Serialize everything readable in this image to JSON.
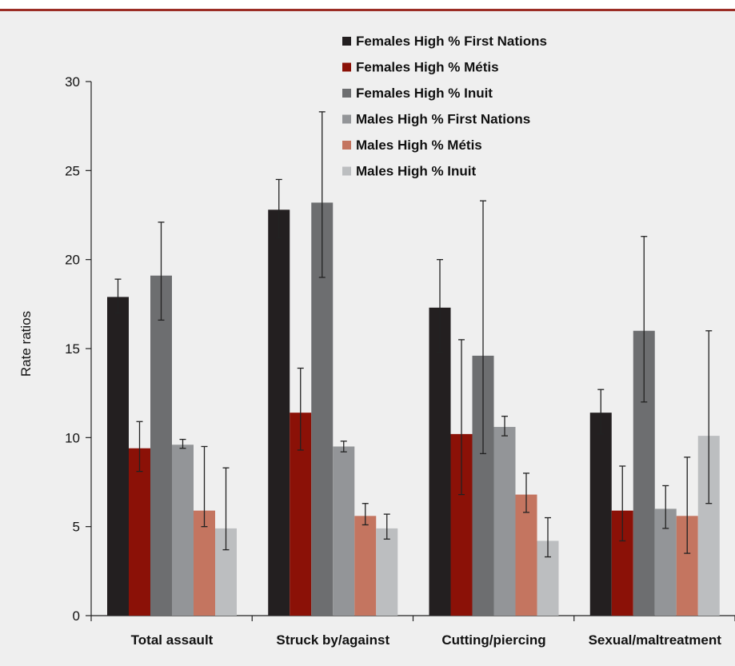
{
  "chart_data": {
    "type": "bar",
    "title": "",
    "xlabel": "",
    "ylabel": "Rate ratios",
    "ylim": [
      0,
      30
    ],
    "yticks": [
      0,
      5,
      10,
      15,
      20,
      25,
      30
    ],
    "grid": false,
    "legend_position": "top-right",
    "categories": [
      "Total assault",
      "Struck by/against",
      "Cutting/piercing",
      "Sexual/maltreatment"
    ],
    "series": [
      {
        "name": "Females High % First Nations",
        "color": "#231f20",
        "values": [
          17.9,
          22.8,
          17.3,
          11.4
        ],
        "ci_low": [
          17.0,
          21.2,
          14.8,
          10.2
        ],
        "ci_high": [
          18.9,
          24.5,
          20.0,
          12.7
        ]
      },
      {
        "name": "Females High % Métis",
        "color": "#8b1107",
        "values": [
          9.4,
          11.4,
          10.2,
          5.9
        ],
        "ci_low": [
          8.1,
          9.3,
          6.8,
          4.2
        ],
        "ci_high": [
          10.9,
          13.9,
          15.5,
          8.4
        ]
      },
      {
        "name": "Females High % Inuit",
        "color": "#6d6e70",
        "values": [
          19.1,
          23.2,
          14.6,
          16.0
        ],
        "ci_low": [
          16.6,
          19.0,
          9.1,
          12.0
        ],
        "ci_high": [
          22.1,
          28.3,
          23.3,
          21.3
        ]
      },
      {
        "name": "Males High % First Nations",
        "color": "#939598",
        "values": [
          9.6,
          9.5,
          10.6,
          6.0
        ],
        "ci_low": [
          9.4,
          9.2,
          10.1,
          4.9
        ],
        "ci_high": [
          9.9,
          9.8,
          11.2,
          7.3
        ]
      },
      {
        "name": "Males High % Métis",
        "color": "#c47560",
        "values": [
          5.9,
          5.6,
          6.8,
          5.6
        ],
        "ci_low": [
          5.0,
          5.1,
          5.8,
          3.5
        ],
        "ci_high": [
          9.5,
          6.3,
          8.0,
          8.9
        ]
      },
      {
        "name": "Males High % Inuit",
        "color": "#bcbec0",
        "values": [
          4.9,
          4.9,
          4.2,
          10.1
        ],
        "ci_low": [
          3.7,
          4.3,
          3.3,
          6.3
        ],
        "ci_high": [
          8.3,
          5.7,
          5.5,
          16.0
        ]
      }
    ]
  }
}
